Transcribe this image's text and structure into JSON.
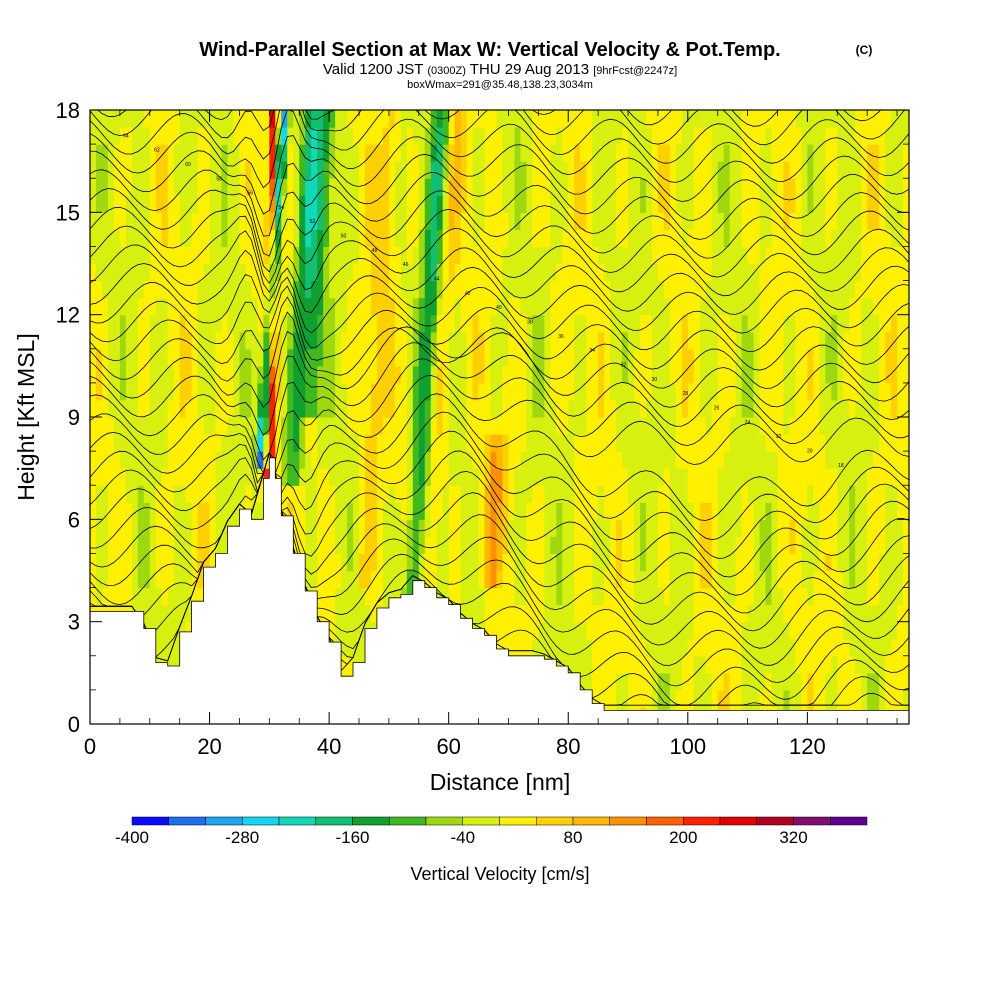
{
  "chart_data": {
    "type": "heatmap",
    "title": "Wind-Parallel Section at Max W: Vertical Velocity & Pot.Temp.",
    "title_mark": "(C)",
    "subtitle_valid": "Valid 1200 JST",
    "subtitle_z": "(0300Z)",
    "subtitle_date": "THU 29 Aug 2013",
    "subtitle_fcst": "[9hrFcst@2247z]",
    "subtitle_box": "boxWmax=291@35.48,138.23,3034m",
    "xlabel": "Distance [nm]",
    "ylabel": "Height [Kft MSL]",
    "xlim": [
      0,
      137
    ],
    "ylim": [
      0,
      18
    ],
    "x_ticks": [
      "0",
      "20",
      "40",
      "60",
      "80",
      "100",
      "120"
    ],
    "y_ticks": [
      "0",
      "3",
      "6",
      "9",
      "12",
      "15",
      "18"
    ],
    "colorbar": {
      "label": "Vertical Velocity [cm/s]",
      "tick_labels": [
        "-400",
        "-280",
        "-160",
        "-40",
        "80",
        "200",
        "320"
      ],
      "colors": [
        "#0a0aff",
        "#1e6ef0",
        "#1aa6f0",
        "#10d8f0",
        "#10d8b8",
        "#10c070",
        "#10a030",
        "#40b820",
        "#a0d810",
        "#d8f010",
        "#fff000",
        "#ffd000",
        "#ffb800",
        "#ff9000",
        "#ff6000",
        "#ff2000",
        "#e00000",
        "#b00020",
        "#801070",
        "#600090"
      ]
    },
    "terrain_heights_kft": [
      [
        0,
        3.3
      ],
      [
        7,
        3.3
      ],
      [
        9,
        2.8
      ],
      [
        11,
        1.8
      ],
      [
        13,
        1.7
      ],
      [
        15,
        2.7
      ],
      [
        17,
        3.6
      ],
      [
        19,
        4.6
      ],
      [
        21,
        5.0
      ],
      [
        23,
        5.8
      ],
      [
        25,
        6.3
      ],
      [
        27,
        6.0
      ],
      [
        29,
        7.2
      ],
      [
        30,
        7.8
      ],
      [
        31,
        7.2
      ],
      [
        32,
        6.1
      ],
      [
        34,
        5.0
      ],
      [
        36,
        3.9
      ],
      [
        38,
        3.0
      ],
      [
        40,
        2.4
      ],
      [
        42,
        1.4
      ],
      [
        44,
        1.8
      ],
      [
        46,
        2.8
      ],
      [
        48,
        3.4
      ],
      [
        50,
        3.7
      ],
      [
        52,
        3.8
      ],
      [
        54,
        4.2
      ],
      [
        56,
        4.0
      ],
      [
        58,
        3.7
      ],
      [
        60,
        3.5
      ],
      [
        62,
        3.1
      ],
      [
        64,
        2.8
      ],
      [
        66,
        2.6
      ],
      [
        68,
        2.2
      ],
      [
        70,
        2.0
      ],
      [
        72,
        2.0
      ],
      [
        74,
        2.0
      ],
      [
        76,
        1.9
      ],
      [
        78,
        1.7
      ],
      [
        80,
        1.5
      ],
      [
        82,
        1.0
      ],
      [
        84,
        0.6
      ],
      [
        86,
        0.4
      ],
      [
        90,
        0.4
      ],
      [
        100,
        0.4
      ],
      [
        110,
        0.4
      ],
      [
        120,
        0.4
      ],
      [
        130,
        0.4
      ],
      [
        137,
        0.4
      ]
    ],
    "w_features": [
      {
        "x": 30,
        "z0": 7.8,
        "z1": 18,
        "w": 291
      },
      {
        "x": 29,
        "z0": 8.5,
        "z1": 18,
        "w": -360
      },
      {
        "x": 34,
        "z0": 8,
        "z1": 18,
        "w": -150
      },
      {
        "x": 37,
        "z0": 10,
        "z1": 18,
        "w": -120
      },
      {
        "x": 46,
        "z0": 5,
        "z1": 18,
        "w": 60
      },
      {
        "x": 54,
        "z0": 4,
        "z1": 18,
        "w": -150
      },
      {
        "x": 57,
        "z0": 5,
        "z1": 18,
        "w": 60
      },
      {
        "x": 67,
        "z0": 5,
        "z1": 8,
        "w": 110
      }
    ],
    "theta_contour_labels": [
      "64",
      "62",
      "60",
      "58",
      "56",
      "54",
      "52",
      "50",
      "48",
      "46",
      "44",
      "42",
      "40",
      "38",
      "36",
      "34",
      "32",
      "30",
      "28",
      "26",
      "24",
      "22",
      "20",
      "18"
    ]
  }
}
